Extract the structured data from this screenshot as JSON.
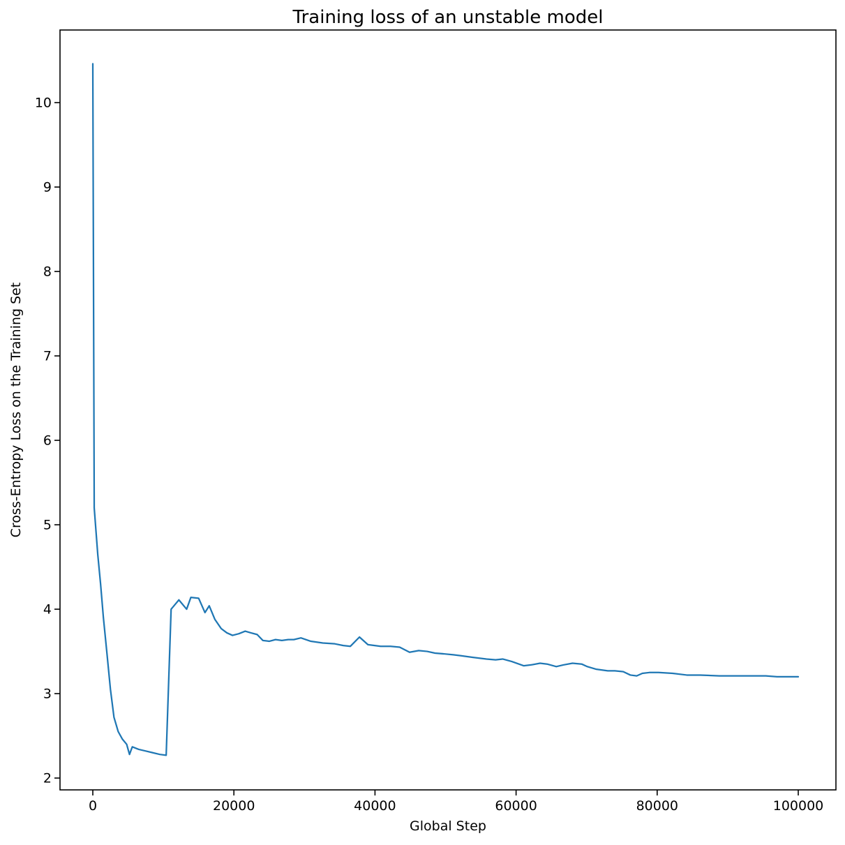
{
  "chart_data": {
    "type": "line",
    "title": "Training loss of an unstable model",
    "xlabel": "Global Step",
    "ylabel": "Cross-Entropy Loss on the Training Set",
    "xlim": [
      -4650,
      105340
    ],
    "ylim": [
      1.86,
      10.86
    ],
    "x_ticks": [
      0,
      20000,
      40000,
      60000,
      80000,
      100000
    ],
    "x_tick_labels": [
      "0",
      "20000",
      "40000",
      "60000",
      "80000",
      "100000"
    ],
    "y_ticks": [
      2,
      3,
      4,
      5,
      6,
      7,
      8,
      9,
      10
    ],
    "y_tick_labels": [
      "2",
      "3",
      "4",
      "5",
      "6",
      "7",
      "8",
      "9",
      "10"
    ],
    "grid": false,
    "legend": "none",
    "line_color": "#1f77b4",
    "line_width": 2.25,
    "axis_color": "#000000",
    "background_color": "#ffffff",
    "points": [
      [
        0,
        10.46
      ],
      [
        200,
        5.2
      ],
      [
        700,
        4.65
      ],
      [
        1100,
        4.3
      ],
      [
        1500,
        3.9
      ],
      [
        2000,
        3.48
      ],
      [
        2500,
        3.05
      ],
      [
        3000,
        2.72
      ],
      [
        3600,
        2.55
      ],
      [
        4200,
        2.46
      ],
      [
        4800,
        2.4
      ],
      [
        5200,
        2.28
      ],
      [
        5600,
        2.37
      ],
      [
        6500,
        2.34
      ],
      [
        7500,
        2.32
      ],
      [
        8500,
        2.3
      ],
      [
        9500,
        2.28
      ],
      [
        10400,
        2.27
      ],
      [
        11100,
        4.0
      ],
      [
        12200,
        4.11
      ],
      [
        13300,
        4.0
      ],
      [
        13900,
        4.14
      ],
      [
        15000,
        4.13
      ],
      [
        15900,
        3.96
      ],
      [
        16500,
        4.04
      ],
      [
        17300,
        3.88
      ],
      [
        18200,
        3.77
      ],
      [
        19000,
        3.72
      ],
      [
        19800,
        3.69
      ],
      [
        20700,
        3.71
      ],
      [
        21600,
        3.74
      ],
      [
        22400,
        3.72
      ],
      [
        23300,
        3.7
      ],
      [
        24100,
        3.63
      ],
      [
        25000,
        3.62
      ],
      [
        25900,
        3.64
      ],
      [
        26800,
        3.63
      ],
      [
        27700,
        3.64
      ],
      [
        28500,
        3.64
      ],
      [
        29500,
        3.66
      ],
      [
        30900,
        3.62
      ],
      [
        32600,
        3.6
      ],
      [
        34300,
        3.59
      ],
      [
        35500,
        3.57
      ],
      [
        36500,
        3.56
      ],
      [
        37800,
        3.67
      ],
      [
        39000,
        3.58
      ],
      [
        40800,
        3.56
      ],
      [
        42200,
        3.56
      ],
      [
        43500,
        3.55
      ],
      [
        44900,
        3.49
      ],
      [
        46200,
        3.51
      ],
      [
        47400,
        3.5
      ],
      [
        48500,
        3.48
      ],
      [
        49900,
        3.47
      ],
      [
        51100,
        3.46
      ],
      [
        52100,
        3.45
      ],
      [
        53800,
        3.43
      ],
      [
        55800,
        3.41
      ],
      [
        57100,
        3.4
      ],
      [
        58100,
        3.41
      ],
      [
        59400,
        3.38
      ],
      [
        61100,
        3.33
      ],
      [
        62100,
        3.34
      ],
      [
        63400,
        3.36
      ],
      [
        64400,
        3.35
      ],
      [
        65700,
        3.32
      ],
      [
        66700,
        3.34
      ],
      [
        68000,
        3.36
      ],
      [
        69300,
        3.35
      ],
      [
        70100,
        3.32
      ],
      [
        71300,
        3.29
      ],
      [
        73000,
        3.27
      ],
      [
        74000,
        3.27
      ],
      [
        75200,
        3.26
      ],
      [
        76200,
        3.22
      ],
      [
        77100,
        3.21
      ],
      [
        77900,
        3.24
      ],
      [
        78900,
        3.25
      ],
      [
        80200,
        3.25
      ],
      [
        82200,
        3.24
      ],
      [
        84200,
        3.22
      ],
      [
        86100,
        3.22
      ],
      [
        88800,
        3.21
      ],
      [
        92000,
        3.21
      ],
      [
        95400,
        3.21
      ],
      [
        97000,
        3.2
      ],
      [
        100000,
        3.2
      ]
    ]
  }
}
